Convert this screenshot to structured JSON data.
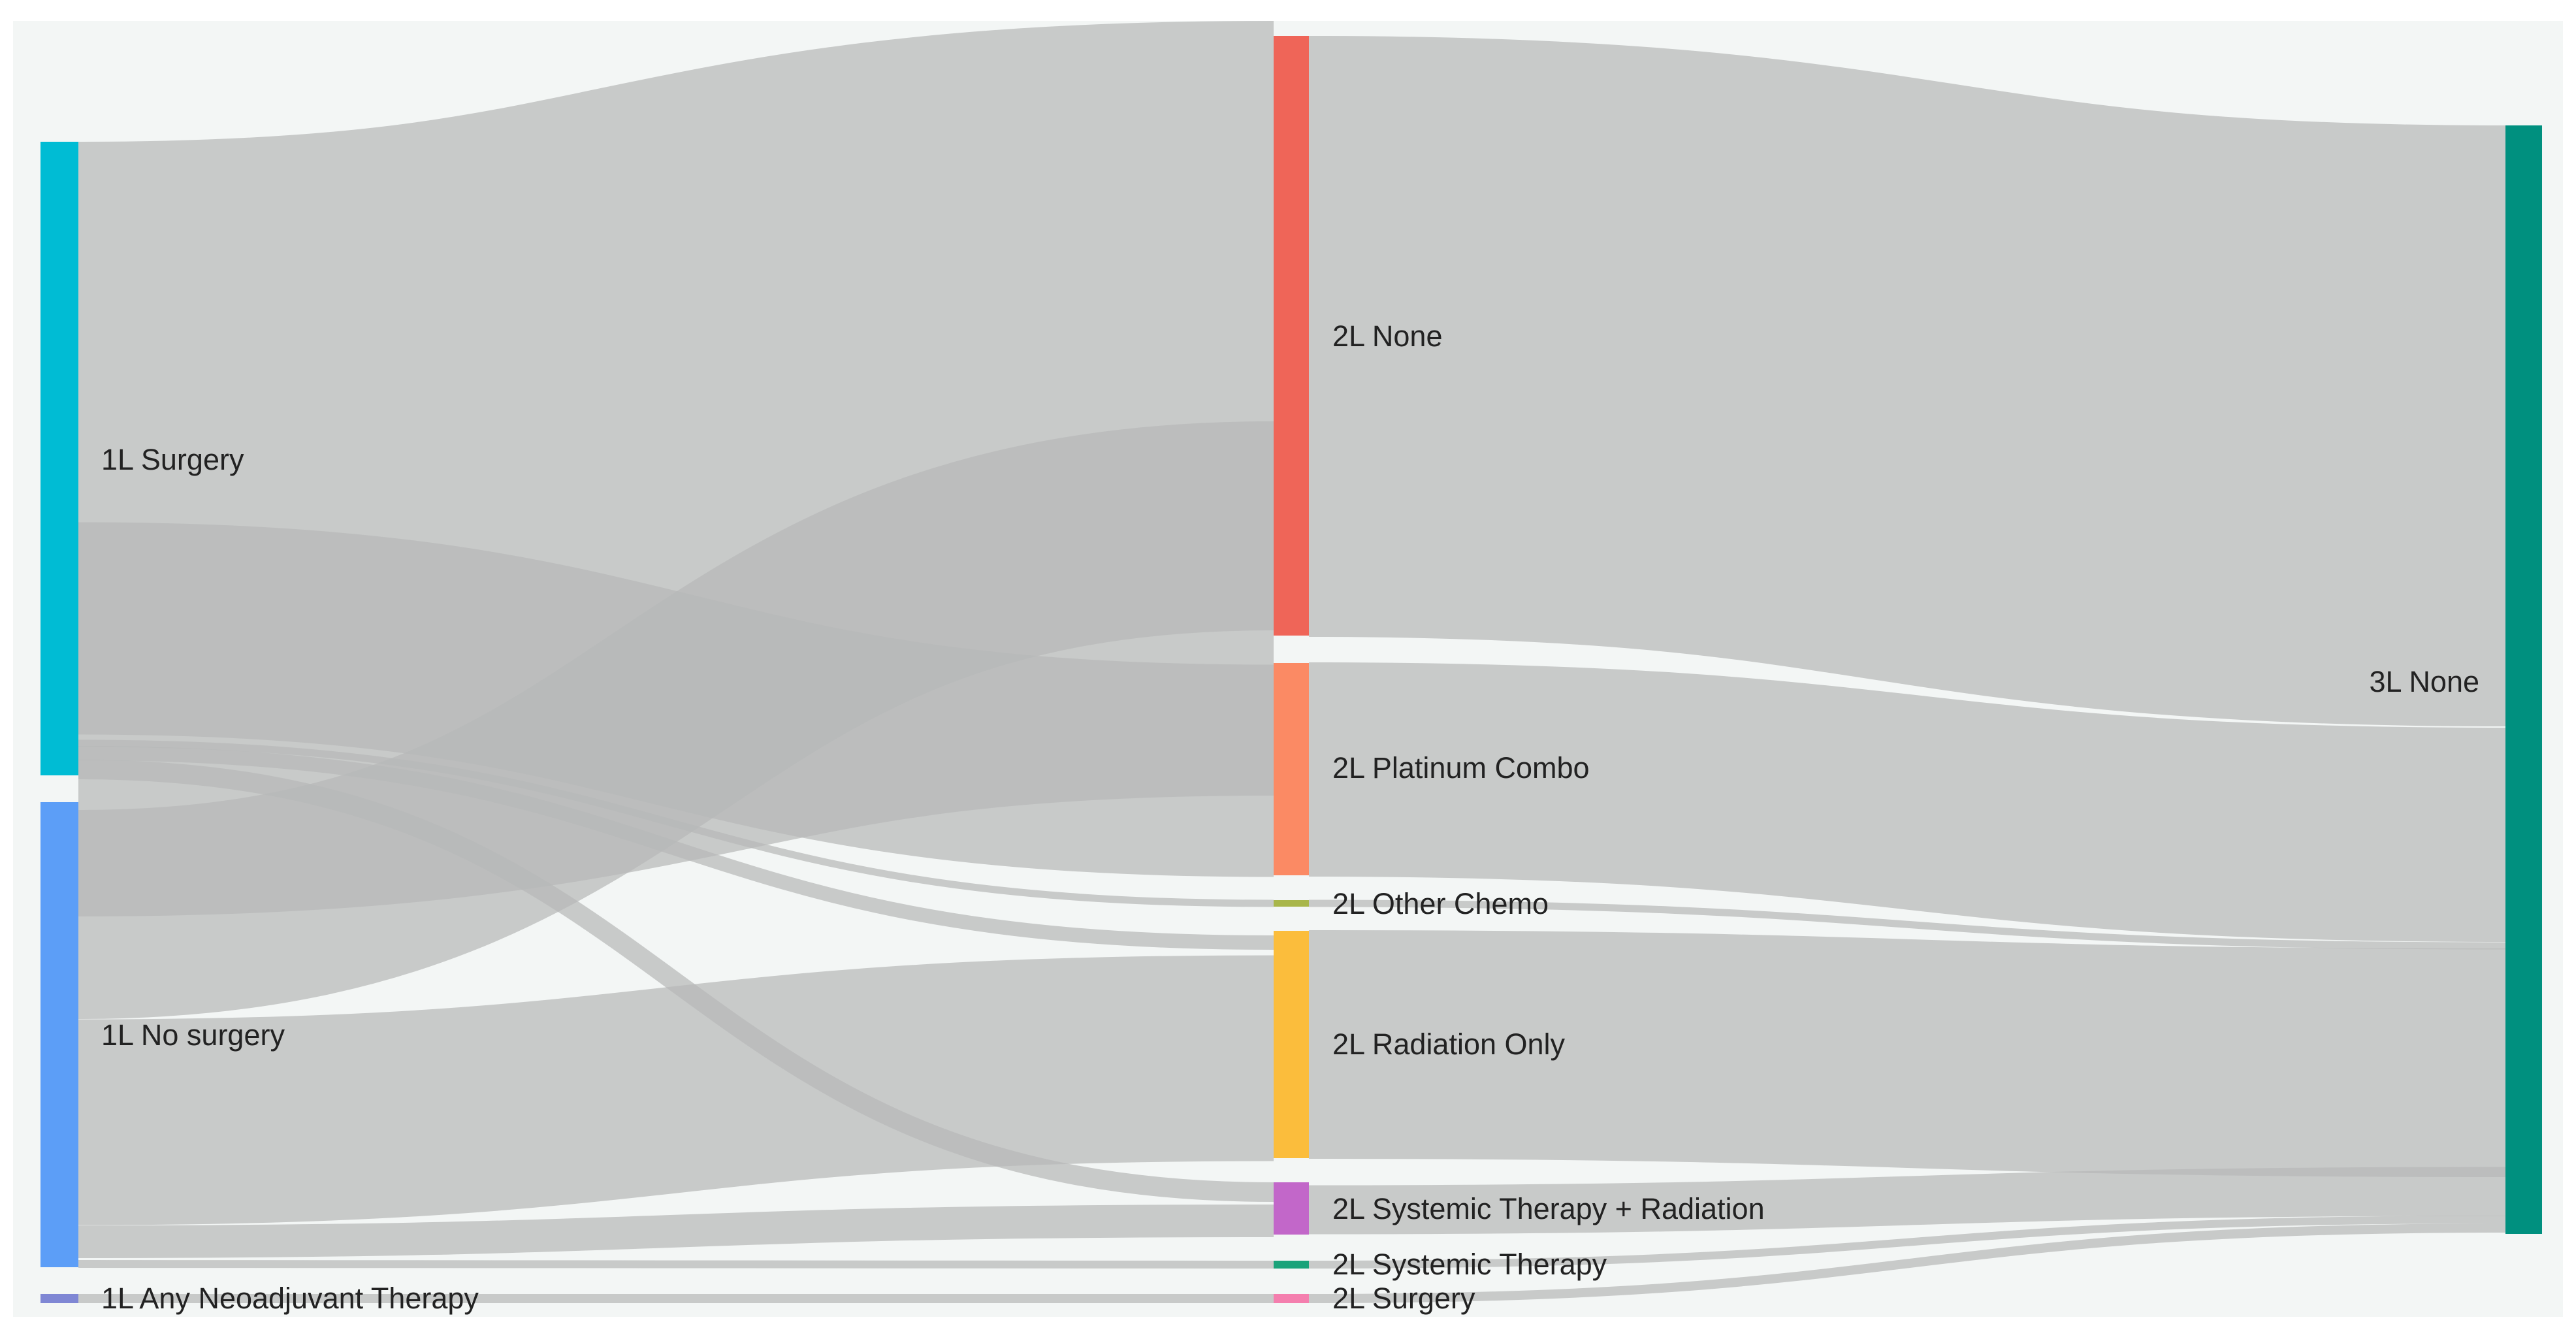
{
  "colors": {
    "background": "#f3f6f5",
    "link": "#b7b9b8",
    "label_text": "#222222"
  },
  "nodes": [
    {
      "id": "s1",
      "label": "1L Surgery",
      "color": "#00bcd4",
      "column": 1
    },
    {
      "id": "s2",
      "label": "1L No surgery",
      "color": "#5c9ef7",
      "column": 1
    },
    {
      "id": "s3",
      "label": "1L Any Neoadjuvant Therapy",
      "color": "#7f87d4",
      "column": 1
    },
    {
      "id": "m1",
      "label": "2L None",
      "color": "#ef6558",
      "column": 2
    },
    {
      "id": "m2",
      "label": "2L Platinum Combo",
      "color": "#fb8a64",
      "column": 2
    },
    {
      "id": "m3",
      "label": "2L Other Chemo",
      "color": "#a8b64a",
      "column": 2
    },
    {
      "id": "m4",
      "label": "2L Radiation Only",
      "color": "#fbbd3c",
      "column": 2
    },
    {
      "id": "m5",
      "label": "2L Systemic Therapy + Radiation",
      "color": "#c267c9",
      "column": 2
    },
    {
      "id": "m6",
      "label": "2L Systemic Therapy",
      "color": "#1aa37a",
      "column": 2
    },
    {
      "id": "m7",
      "label": "2L Surgery",
      "color": "#f47fae",
      "column": 2
    },
    {
      "id": "r1",
      "label": "3L None",
      "color": "#00907f",
      "column": 3
    }
  ]
}
